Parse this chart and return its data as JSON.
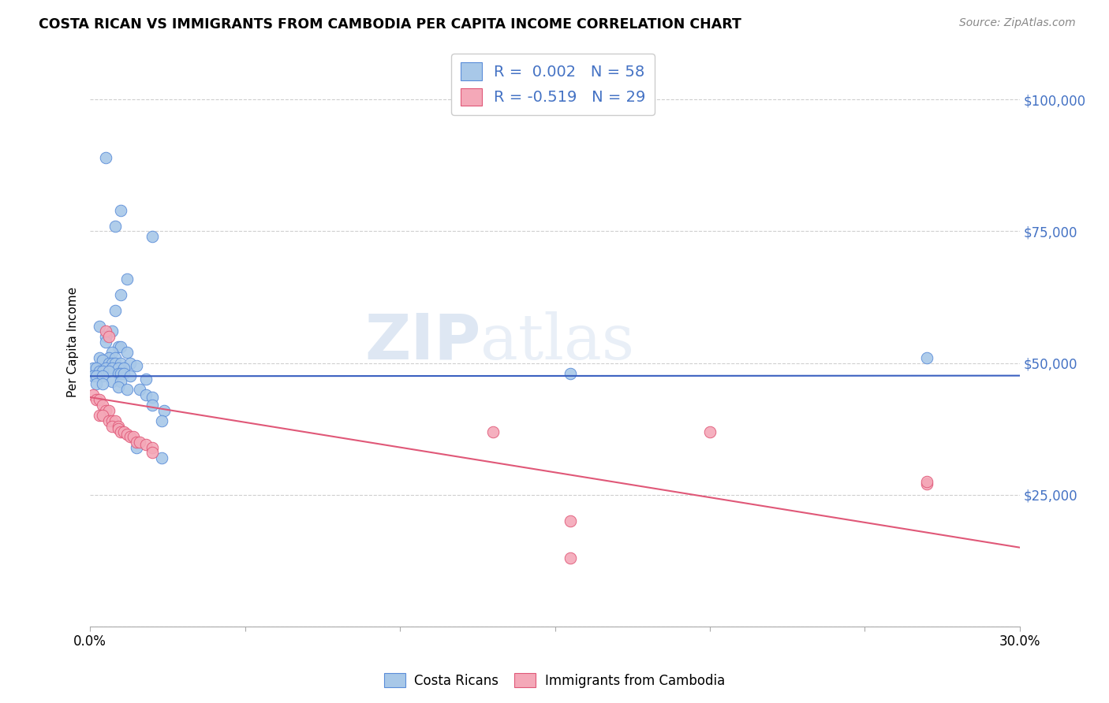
{
  "title": "COSTA RICAN VS IMMIGRANTS FROM CAMBODIA PER CAPITA INCOME CORRELATION CHART",
  "source": "Source: ZipAtlas.com",
  "ylabel": "Per Capita Income",
  "yticks": [
    0,
    25000,
    50000,
    75000,
    100000
  ],
  "ytick_labels": [
    "",
    "$25,000",
    "$50,000",
    "$75,000",
    "$100,000"
  ],
  "xlim": [
    0.0,
    0.3
  ],
  "ylim": [
    0,
    108000
  ],
  "blue_color": "#A8C8E8",
  "pink_color": "#F4A8B8",
  "blue_edge_color": "#5B8DD9",
  "pink_edge_color": "#E05878",
  "blue_line_color": "#3A60C0",
  "pink_line_color": "#E05878",
  "tick_label_color": "#4472C4",
  "blue_scatter": [
    [
      0.005,
      89000
    ],
    [
      0.01,
      79000
    ],
    [
      0.008,
      76000
    ],
    [
      0.02,
      74000
    ],
    [
      0.012,
      66000
    ],
    [
      0.01,
      63000
    ],
    [
      0.008,
      60000
    ],
    [
      0.003,
      57000
    ],
    [
      0.007,
      56000
    ],
    [
      0.005,
      55000
    ],
    [
      0.005,
      54000
    ],
    [
      0.009,
      53000
    ],
    [
      0.01,
      53000
    ],
    [
      0.012,
      52000
    ],
    [
      0.007,
      52000
    ],
    [
      0.006,
      51000
    ],
    [
      0.008,
      51000
    ],
    [
      0.003,
      51000
    ],
    [
      0.004,
      50500
    ],
    [
      0.006,
      50000
    ],
    [
      0.007,
      50000
    ],
    [
      0.008,
      50000
    ],
    [
      0.01,
      50000
    ],
    [
      0.013,
      50000
    ],
    [
      0.015,
      49500
    ],
    [
      0.001,
      49000
    ],
    [
      0.002,
      49000
    ],
    [
      0.005,
      49000
    ],
    [
      0.007,
      49000
    ],
    [
      0.009,
      49000
    ],
    [
      0.011,
      49000
    ],
    [
      0.003,
      48500
    ],
    [
      0.004,
      48500
    ],
    [
      0.006,
      48500
    ],
    [
      0.009,
      48000
    ],
    [
      0.01,
      48000
    ],
    [
      0.011,
      48000
    ],
    [
      0.001,
      47500
    ],
    [
      0.002,
      47500
    ],
    [
      0.004,
      47500
    ],
    [
      0.013,
      47500
    ],
    [
      0.018,
      47000
    ],
    [
      0.007,
      46500
    ],
    [
      0.01,
      46500
    ],
    [
      0.002,
      46000
    ],
    [
      0.004,
      46000
    ],
    [
      0.009,
      45500
    ],
    [
      0.012,
      45000
    ],
    [
      0.016,
      45000
    ],
    [
      0.018,
      44000
    ],
    [
      0.02,
      43500
    ],
    [
      0.02,
      42000
    ],
    [
      0.024,
      41000
    ],
    [
      0.023,
      39000
    ],
    [
      0.015,
      34000
    ],
    [
      0.023,
      32000
    ],
    [
      0.27,
      51000
    ],
    [
      0.155,
      48000
    ]
  ],
  "pink_scatter": [
    [
      0.005,
      56000
    ],
    [
      0.006,
      55000
    ],
    [
      0.001,
      44000
    ],
    [
      0.002,
      43000
    ],
    [
      0.003,
      43000
    ],
    [
      0.004,
      42000
    ],
    [
      0.005,
      41000
    ],
    [
      0.006,
      41000
    ],
    [
      0.003,
      40000
    ],
    [
      0.004,
      40000
    ],
    [
      0.006,
      39000
    ],
    [
      0.007,
      39000
    ],
    [
      0.008,
      39000
    ],
    [
      0.007,
      38000
    ],
    [
      0.009,
      38000
    ],
    [
      0.009,
      37500
    ],
    [
      0.01,
      37000
    ],
    [
      0.011,
      37000
    ],
    [
      0.012,
      36500
    ],
    [
      0.013,
      36000
    ],
    [
      0.014,
      36000
    ],
    [
      0.015,
      35000
    ],
    [
      0.016,
      35000
    ],
    [
      0.018,
      34500
    ],
    [
      0.02,
      34000
    ],
    [
      0.02,
      33000
    ],
    [
      0.13,
      37000
    ],
    [
      0.155,
      20000
    ],
    [
      0.155,
      13000
    ],
    [
      0.2,
      37000
    ],
    [
      0.27,
      27000
    ],
    [
      0.27,
      27500
    ]
  ],
  "watermark_zip": "ZIP",
  "watermark_atlas": "atlas",
  "background_color": "#FFFFFF",
  "grid_color": "#BBBBBB",
  "blue_line_y0": 47500,
  "blue_line_y1": 47600,
  "pink_line_y0": 43500,
  "pink_line_y1": 15000
}
